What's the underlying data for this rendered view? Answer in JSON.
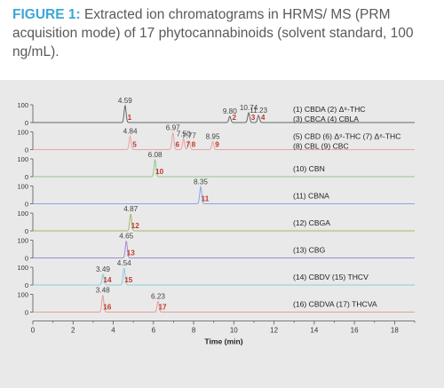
{
  "caption": {
    "figure_label": "FIGURE 1:",
    "text": " Extracted ion chromatograms in HRMS/ MS (PRM acquisition mode) of 17 phytocannabinoids (solvent standard, 100 ng/mL)."
  },
  "colors": {
    "figure_label": "#3ca7d6",
    "caption_text": "#58595b",
    "panel_background": "#e9e9e9",
    "peak_number": "#c0392b"
  },
  "chart_data": {
    "type": "line",
    "xlabel": "Time (min)",
    "xlim": [
      0,
      19
    ],
    "x_ticks": [
      0,
      2,
      4,
      6,
      8,
      10,
      12,
      14,
      16,
      18
    ],
    "y_ticks": [
      "100",
      "0"
    ],
    "traces": [
      {
        "legend": "(1) CBDA (2) Δ⁹-THC",
        "legend2": "(3) CBCA (4) CBLA",
        "color": "#666666",
        "peaks": [
          {
            "rt": 4.59,
            "label": "4.59",
            "num": "1",
            "height": 0.95
          },
          {
            "rt": 9.8,
            "label": "9.80",
            "num": "2",
            "height": 0.35
          },
          {
            "rt": 10.74,
            "label": "10.74",
            "num": "3",
            "height": 0.55
          },
          {
            "rt": 11.23,
            "label": "11.23",
            "num": "4",
            "height": 0.4
          }
        ]
      },
      {
        "legend": "(5) CBD (6) Δ⁹-THC (7) Δ⁸-THC",
        "legend2": "(8) CBL (9) CBC",
        "color": "#e8a5a5",
        "peaks": [
          {
            "rt": 4.84,
            "label": "4.84",
            "num": "5",
            "height": 0.75
          },
          {
            "rt": 6.97,
            "label": "6.97",
            "num": "6",
            "height": 0.95
          },
          {
            "rt": 7.5,
            "label": "7.50",
            "num": "7",
            "height": 0.6
          },
          {
            "rt": 7.77,
            "label": "7.77",
            "num": "8",
            "height": 0.5
          },
          {
            "rt": 8.95,
            "label": "8.95",
            "num": "9",
            "height": 0.45
          }
        ]
      },
      {
        "legend": "(10) CBN",
        "color": "#8fc98f",
        "peaks": [
          {
            "rt": 6.08,
            "label": "6.08",
            "num": "10",
            "height": 0.95
          }
        ]
      },
      {
        "legend": "(11) CBNA",
        "color": "#8aa8e6",
        "peaks": [
          {
            "rt": 8.35,
            "label": "8.35",
            "num": "11",
            "height": 0.95
          }
        ]
      },
      {
        "legend": "(12) CBGA",
        "color": "#a2b86a",
        "peaks": [
          {
            "rt": 4.87,
            "label": "4.87",
            "num": "12",
            "height": 0.95
          }
        ]
      },
      {
        "legend": "(13) CBG",
        "color": "#a58ad8",
        "peaks": [
          {
            "rt": 4.65,
            "label": "4.65",
            "num": "13",
            "height": 0.95
          }
        ]
      },
      {
        "legend": "(14) CBDV (15) THCV",
        "color": "#86cfd6",
        "peaks": [
          {
            "rt": 3.49,
            "label": "3.49",
            "num": "14",
            "height": 0.6
          },
          {
            "rt": 4.54,
            "label": "4.54",
            "num": "15",
            "height": 0.95
          }
        ]
      },
      {
        "legend": "(16) CBDVA (17) THCVA",
        "color": "#e3a0a0",
        "peaks": [
          {
            "rt": 3.48,
            "label": "3.48",
            "num": "16",
            "height": 0.95
          },
          {
            "rt": 6.23,
            "label": "6.23",
            "num": "17",
            "height": 0.6
          }
        ]
      }
    ]
  }
}
